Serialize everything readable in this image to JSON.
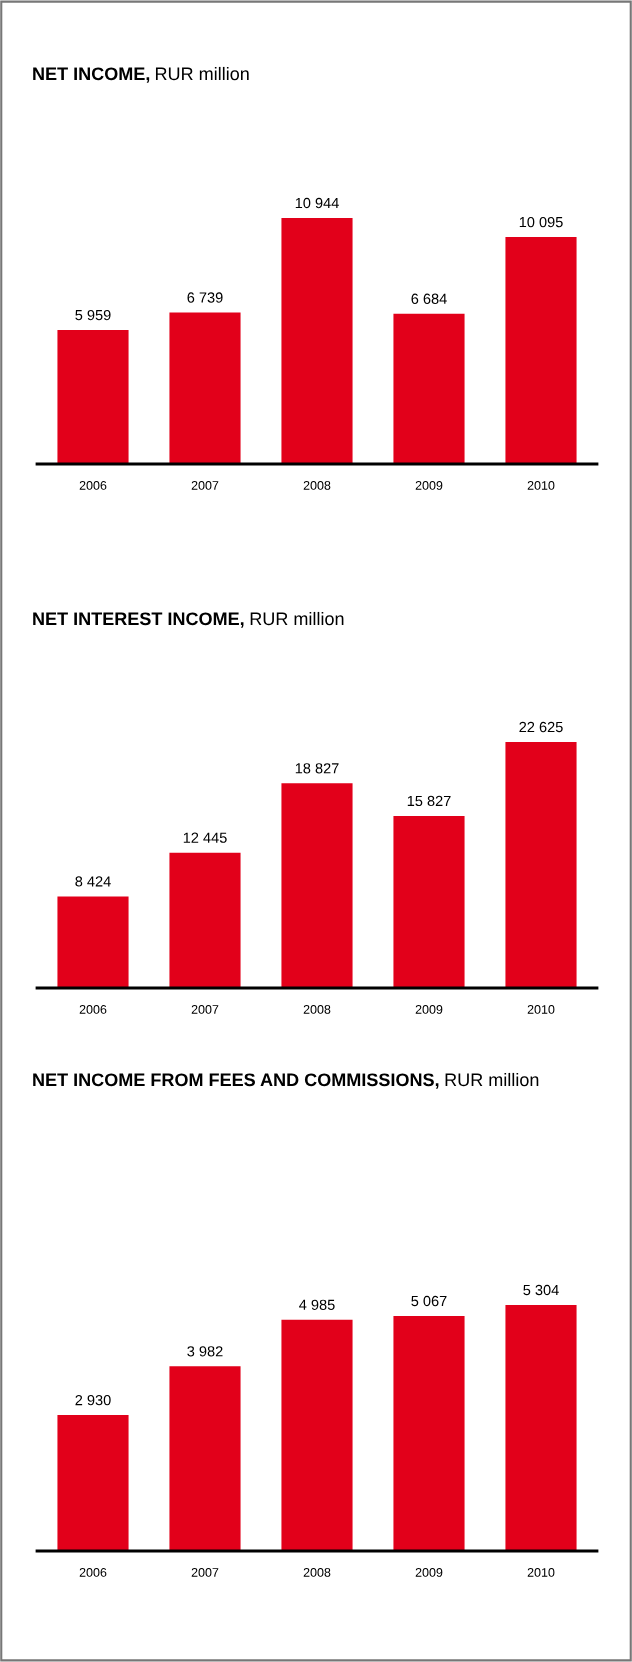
{
  "chart_data": [
    {
      "type": "bar",
      "title": "NET INCOME,",
      "subtitle": "RUR million",
      "categories": [
        "2006",
        "2007",
        "2008",
        "2009",
        "2010"
      ],
      "values": [
        5959,
        6739,
        10944,
        6684,
        10095
      ],
      "color": "#e2001a",
      "data_labels": true
    },
    {
      "type": "bar",
      "title": "NET INTEREST INCOME,",
      "subtitle": "RUR million",
      "categories": [
        "2006",
        "2007",
        "2008",
        "2009",
        "2010"
      ],
      "values": [
        8424,
        12445,
        18827,
        15827,
        22625
      ],
      "color": "#e2001a",
      "data_labels": true
    },
    {
      "type": "bar",
      "title": "NET INCOME FROM FEES AND COMMISSIONS,",
      "subtitle": "RUR million",
      "categories": [
        "2006",
        "2007",
        "2008",
        "2009",
        "2010"
      ],
      "values": [
        2930,
        3982,
        4985,
        5067,
        5304
      ],
      "color": "#e2001a",
      "data_labels": true
    }
  ]
}
